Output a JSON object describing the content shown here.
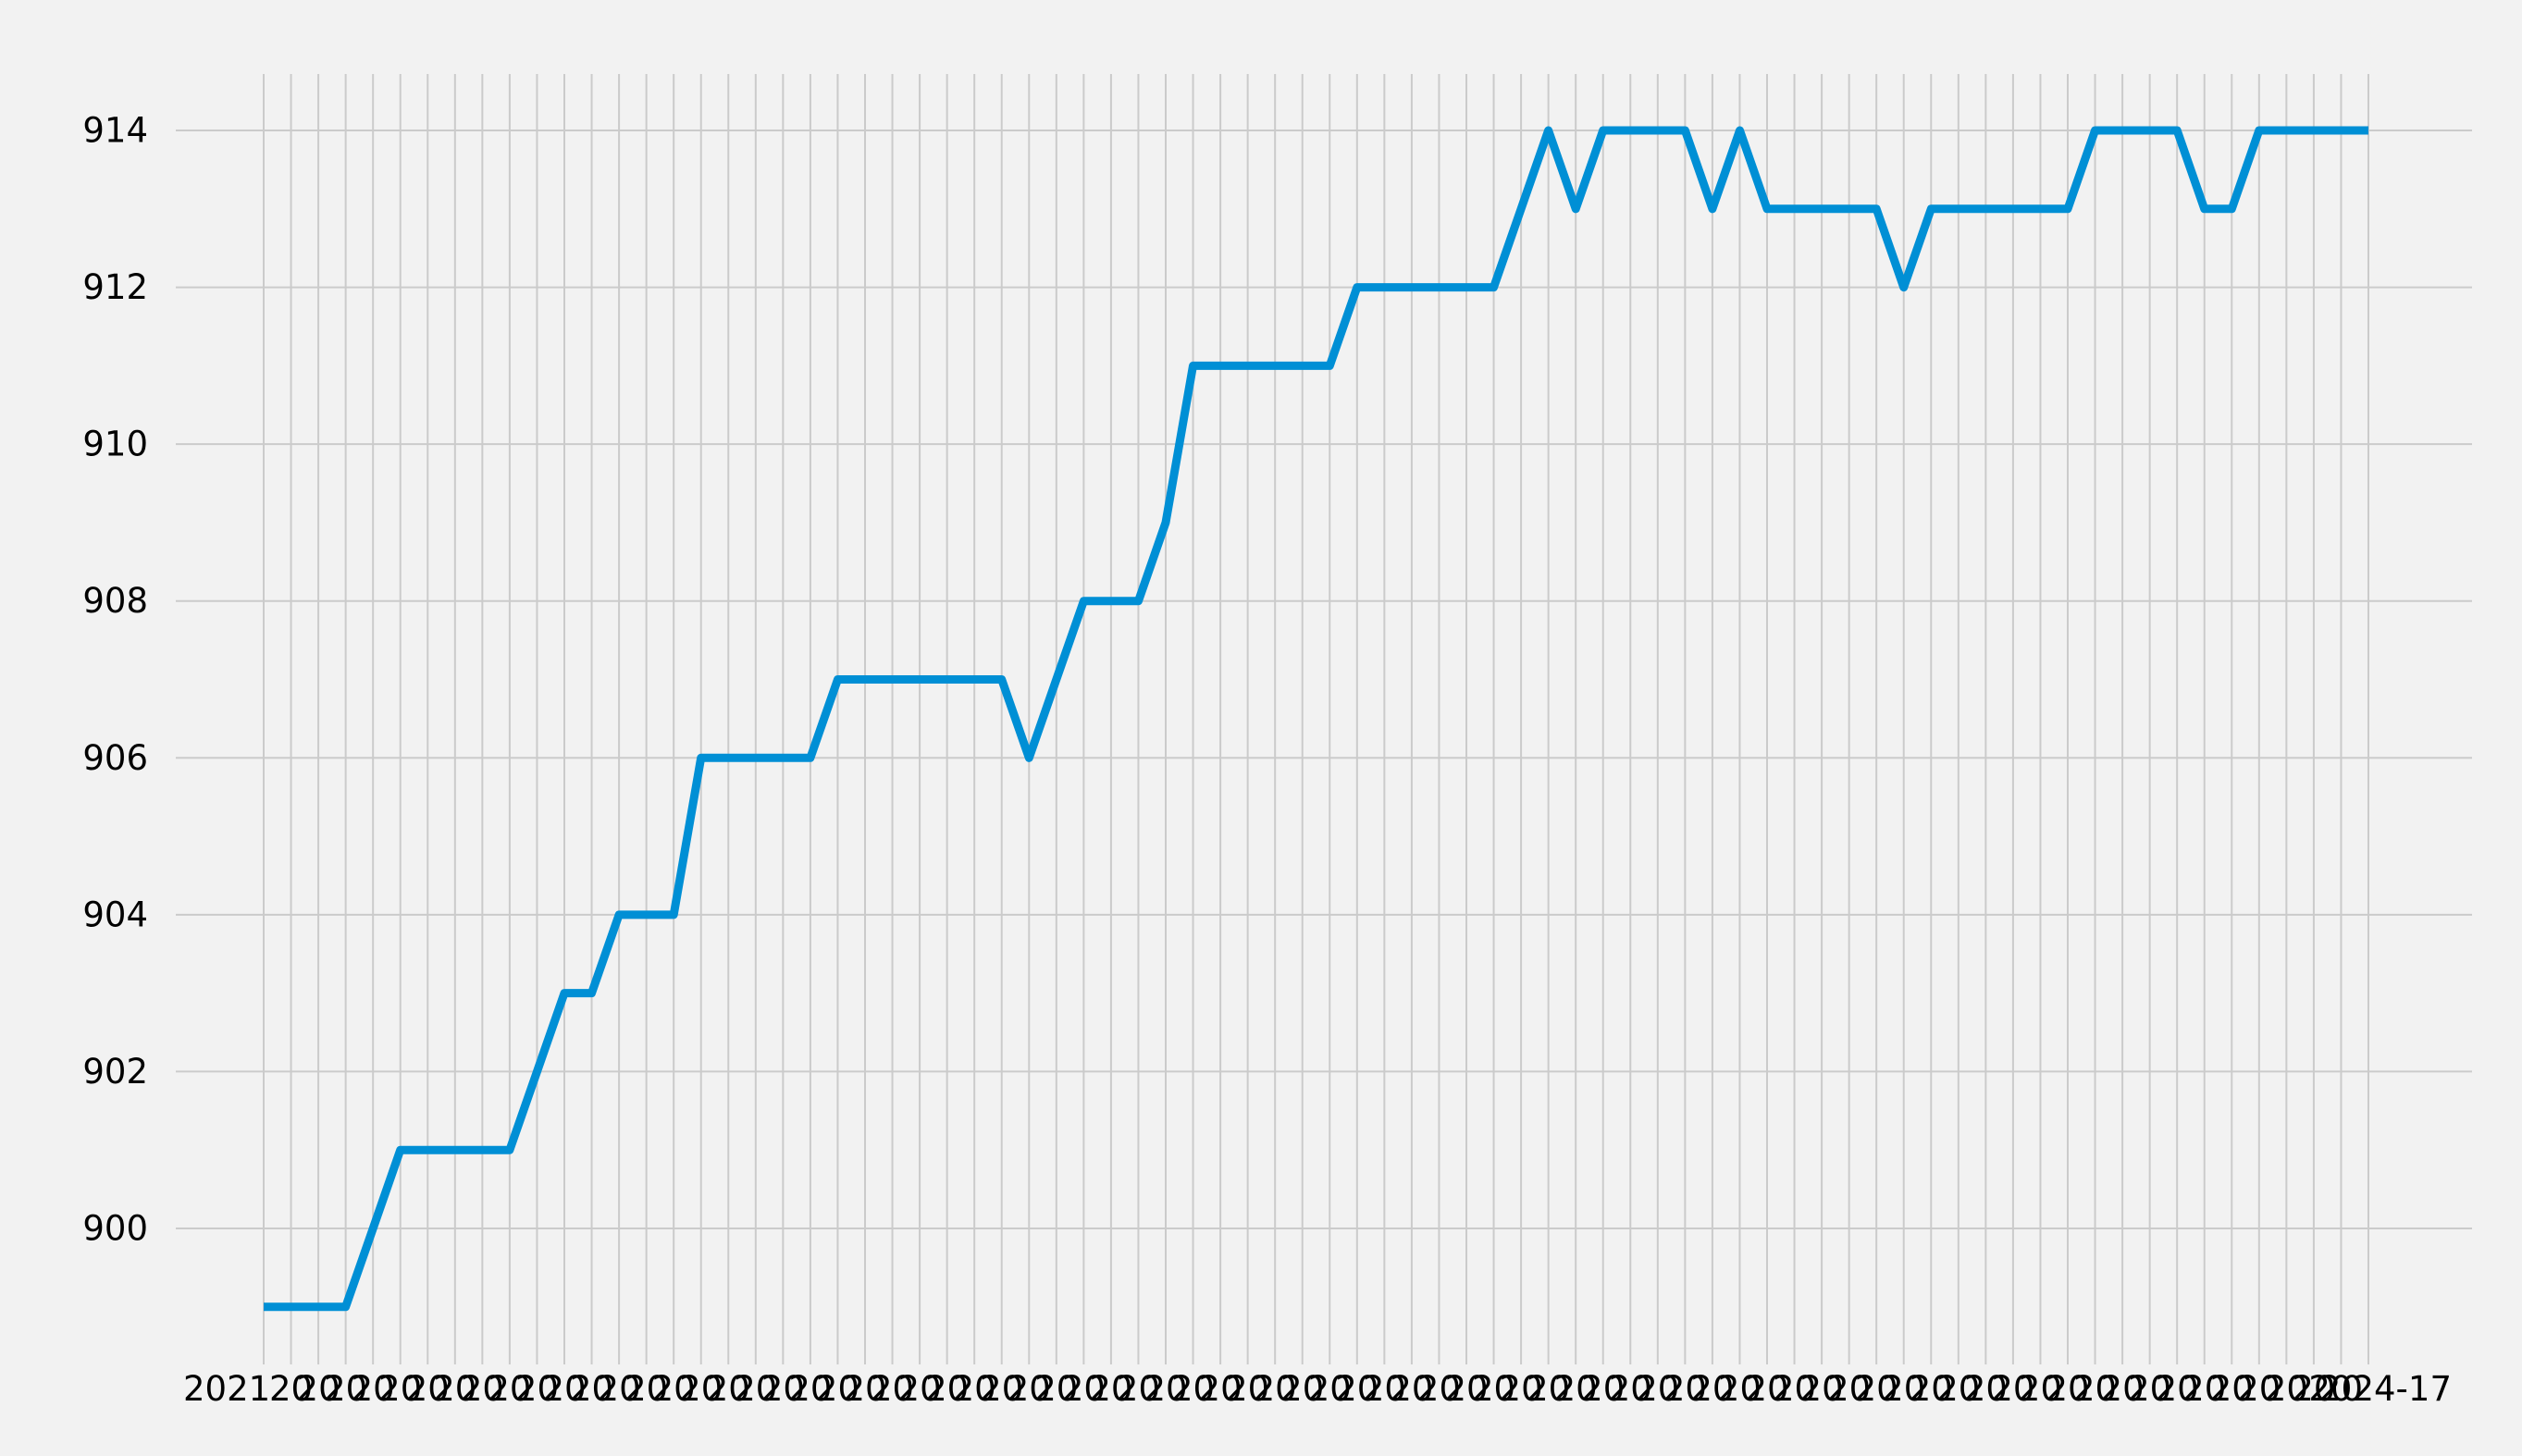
{
  "chart_data": {
    "type": "line",
    "title": "",
    "xlabel": "",
    "ylabel": "",
    "ylim": [
      898.6,
      914.7
    ],
    "yticks": [
      900,
      902,
      904,
      906,
      908,
      910,
      912,
      914
    ],
    "grid": true,
    "legend": "none",
    "x_tick_labels_overlapping": true,
    "x_tick_label_first": "2021",
    "x_tick_label_last": "2024-17",
    "series": [
      {
        "color": "#008fd5",
        "values": [
          899,
          899,
          899,
          899,
          900,
          901,
          901,
          901,
          901,
          901,
          902,
          903,
          903,
          904,
          904,
          904,
          906,
          906,
          906,
          906,
          906,
          907,
          907,
          907,
          907,
          907,
          907,
          907,
          906,
          907,
          908,
          908,
          908,
          909,
          911,
          911,
          911,
          911,
          911,
          911,
          912,
          912,
          912,
          912,
          912,
          912,
          913,
          914,
          913,
          914,
          914,
          914,
          914,
          913,
          914,
          913,
          913,
          913,
          913,
          913,
          912,
          913,
          913,
          913,
          913,
          913,
          913,
          914,
          914,
          914,
          914,
          913,
          913,
          914,
          914,
          914,
          914,
          914
        ]
      }
    ]
  },
  "colors": {
    "background": "#f2f2f2",
    "grid": "#cbcbcb",
    "line": "#008fd5"
  }
}
